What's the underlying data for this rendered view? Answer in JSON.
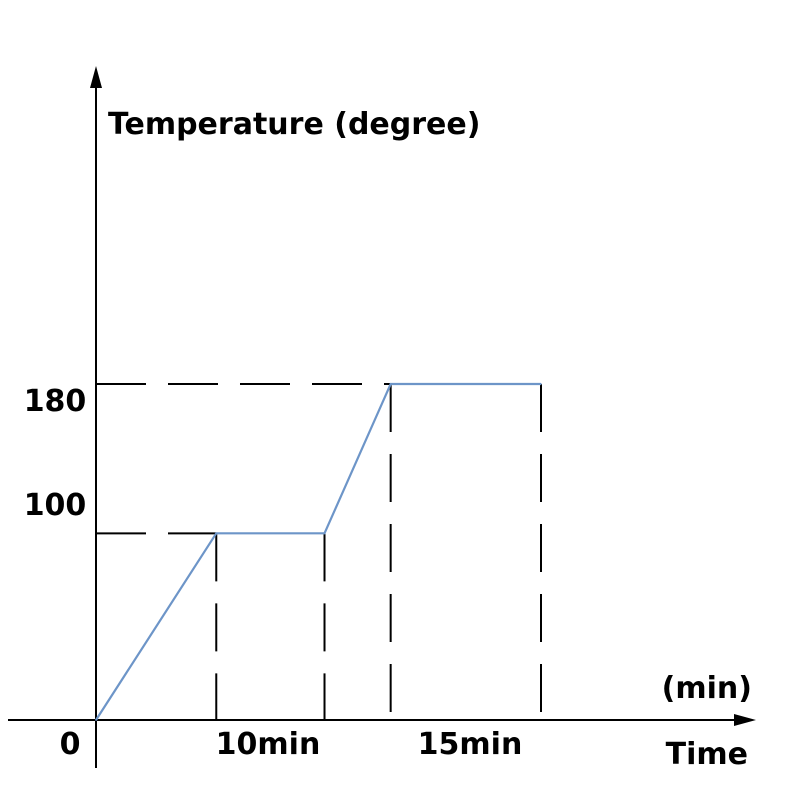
{
  "chart_data": {
    "type": "line",
    "y_axis_label": "Temperature (degree)",
    "x_axis_label": "Time",
    "x_unit_label": "(min)",
    "origin_label": "0",
    "y_tick_labels": [
      "100",
      "180"
    ],
    "interval_labels": [
      "10min",
      "15min"
    ],
    "series": [
      {
        "color": "#6d95c8",
        "points": [
          {
            "x": 0,
            "y": 0
          },
          {
            "x": 10,
            "y": 100
          },
          {
            "x": 19,
            "y": 100
          },
          {
            "x": 24.5,
            "y": 180
          },
          {
            "x": 37,
            "y": 180
          }
        ]
      }
    ],
    "guide_lines": {
      "horizontal": [
        100,
        180
      ],
      "vertical": [
        10,
        19,
        24.5,
        37
      ]
    },
    "y_range": [
      0,
      180
    ],
    "x_range": [
      0,
      37
    ],
    "grid": false,
    "legend": "none"
  }
}
